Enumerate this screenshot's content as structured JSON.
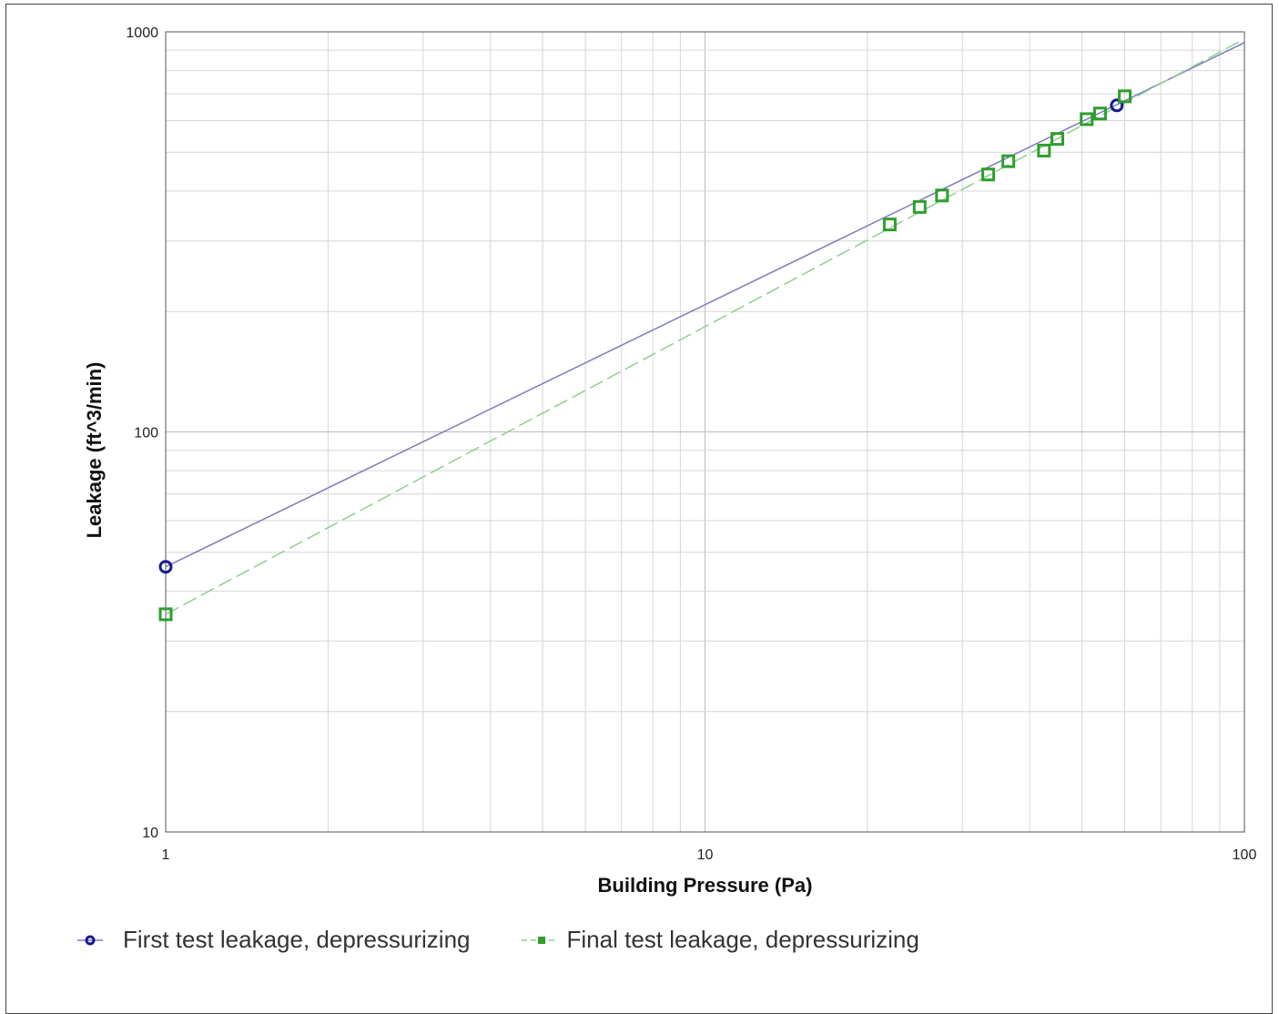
{
  "chart_data": {
    "type": "scatter",
    "xlabel": "Building Pressure (Pa)",
    "ylabel": "Leakage (ft^3/min)",
    "xscale": "log",
    "yscale": "log",
    "xlim": [
      1,
      100
    ],
    "ylim": [
      10,
      1000
    ],
    "xticks": [
      "1",
      "10",
      "100"
    ],
    "yticks": [
      "10",
      "100",
      "1000"
    ],
    "grid": true,
    "legend_position": "bottom",
    "series": [
      {
        "name": "First test leakage, depressurizing",
        "color": "#1a1a8c",
        "marker": "circle",
        "points": [
          [
            1,
            46
          ],
          [
            58,
            655
          ]
        ],
        "fit_line": {
          "style": "solid",
          "color": "#7b7bc0",
          "from": [
            1,
            46
          ],
          "to": [
            100,
            940
          ]
        }
      },
      {
        "name": "Final test leakage, depressurizing",
        "color": "#2e9e2e",
        "marker": "square",
        "points": [
          [
            1,
            35
          ],
          [
            22,
            330
          ],
          [
            25,
            365
          ],
          [
            27.5,
            390
          ],
          [
            33.5,
            440
          ],
          [
            36.5,
            475
          ],
          [
            42.5,
            505
          ],
          [
            45,
            540
          ],
          [
            51,
            605
          ],
          [
            54,
            625
          ],
          [
            60,
            690
          ]
        ],
        "fit_line": {
          "style": "dashed",
          "color": "#8fcf8f",
          "from": [
            1,
            35
          ],
          "to": [
            100,
            960
          ]
        }
      }
    ]
  }
}
